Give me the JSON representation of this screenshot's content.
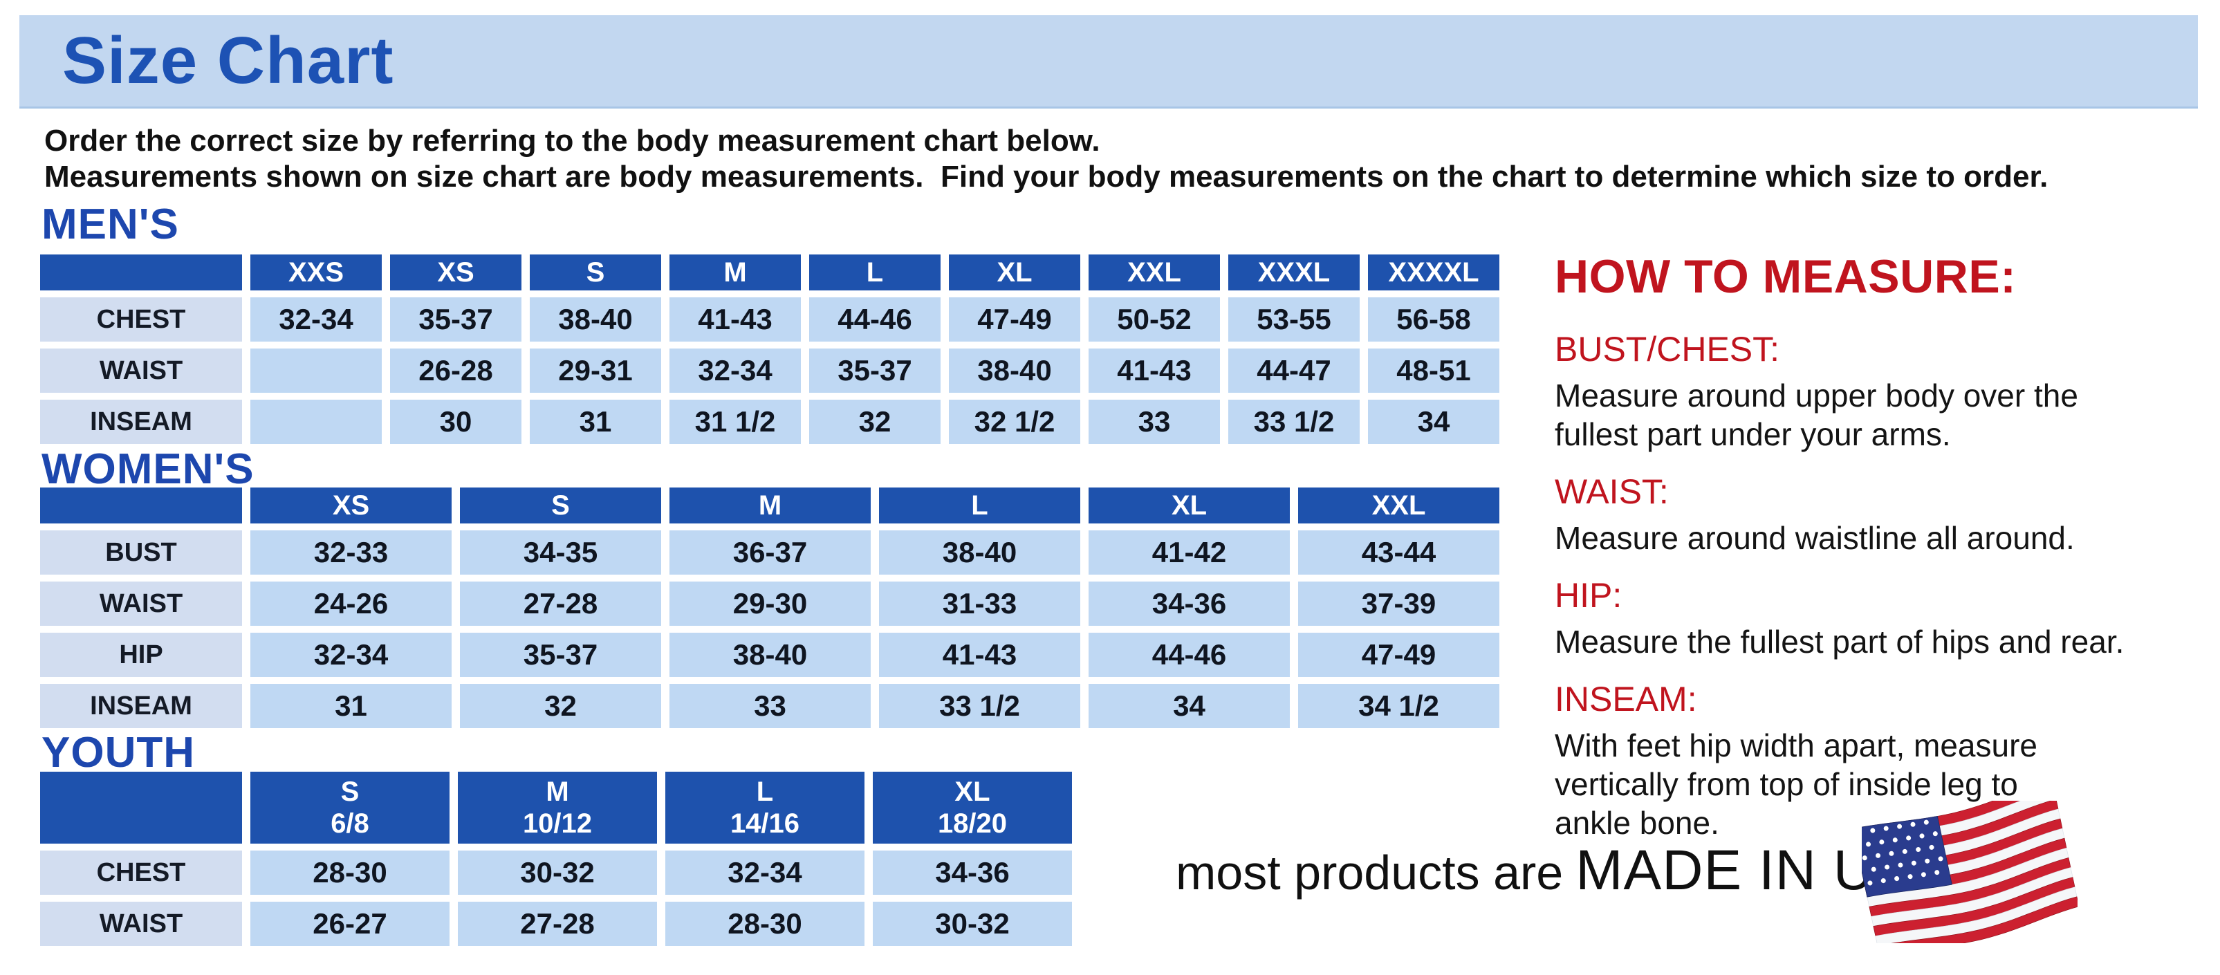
{
  "banner": {
    "title": "Size Chart"
  },
  "intro": {
    "line1": "Order the correct size by referring to the body measurement chart below.",
    "line2": "Measurements shown on size chart are body measurements.  Find your body measurements on the chart to determine which size to order."
  },
  "tables": {
    "mens": {
      "heading": "MEN'S",
      "columns": [
        "",
        "XXS",
        "XS",
        "S",
        "M",
        "L",
        "XL",
        "XXL",
        "XXXL",
        "XXXXL"
      ],
      "rows": [
        {
          "label": "CHEST",
          "values": [
            "32-34",
            "35-37",
            "38-40",
            "41-43",
            "44-46",
            "47-49",
            "50-52",
            "53-55",
            "56-58"
          ]
        },
        {
          "label": "WAIST",
          "values": [
            "",
            "26-28",
            "29-31",
            "32-34",
            "35-37",
            "38-40",
            "41-43",
            "44-47",
            "48-51"
          ]
        },
        {
          "label": "INSEAM",
          "values": [
            "",
            "30",
            "31",
            "31 1/2",
            "32",
            "32 1/2",
            "33",
            "33 1/2",
            "34"
          ]
        }
      ]
    },
    "womens": {
      "heading": "WOMEN'S",
      "columns": [
        "",
        "XS",
        "S",
        "M",
        "L",
        "XL",
        "XXL"
      ],
      "rows": [
        {
          "label": "BUST",
          "values": [
            "32-33",
            "34-35",
            "36-37",
            "38-40",
            "41-42",
            "43-44"
          ]
        },
        {
          "label": "WAIST",
          "values": [
            "24-26",
            "27-28",
            "29-30",
            "31-33",
            "34-36",
            "37-39"
          ]
        },
        {
          "label": "HIP",
          "values": [
            "32-34",
            "35-37",
            "38-40",
            "41-43",
            "44-46",
            "47-49"
          ]
        },
        {
          "label": "INSEAM",
          "values": [
            "31",
            "32",
            "33",
            "33 1/2",
            "34",
            "34 1/2"
          ]
        }
      ]
    },
    "youth": {
      "heading": "YOUTH",
      "columns": [
        "",
        "S\n6/8",
        "M\n10/12",
        "L\n14/16",
        "XL\n18/20"
      ],
      "rows": [
        {
          "label": "CHEST",
          "values": [
            "28-30",
            "30-32",
            "32-34",
            "34-36"
          ]
        },
        {
          "label": "WAIST",
          "values": [
            "26-27",
            "27-28",
            "28-30",
            "30-32"
          ]
        }
      ]
    }
  },
  "how_to_measure": {
    "heading": "HOW TO MEASURE:",
    "sections": [
      {
        "label": "BUST/CHEST:",
        "text": "Measure around upper body over the\nfullest part under your arms."
      },
      {
        "label": "WAIST:",
        "text": "Measure around waistline all around."
      },
      {
        "label": "HIP:",
        "text": "Measure the fullest part of hips and rear."
      },
      {
        "label": "INSEAM:",
        "text": "With feet hip width apart, measure\nvertically from top of inside leg to\nankle bone."
      }
    ]
  },
  "footer": {
    "prefix": "most products are",
    "emphasis": "MADE IN USA",
    "flag_icon": "us-flag-icon"
  },
  "colors": {
    "banner_bg": "#c2d7f0",
    "title_blue": "#1d52b4",
    "heading_blue": "#1d47ae",
    "table_header_blue": "#1e52ad",
    "row_label_bg": "#d2ddf0",
    "cell_bg": "#bfd8f3",
    "accent_red": "#c0141e",
    "flag_red": "#cc2030",
    "flag_blue": "#2a3c8e"
  }
}
